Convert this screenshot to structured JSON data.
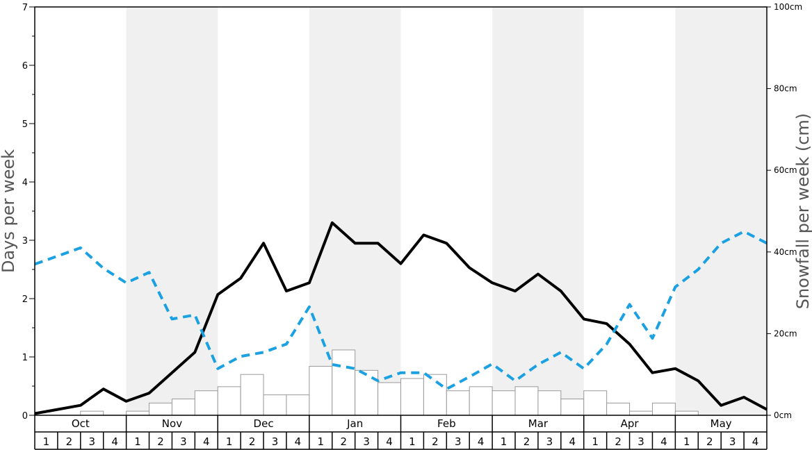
{
  "chart_data": {
    "type": "bar+line",
    "title": "",
    "months": [
      "Oct",
      "Nov",
      "Dec",
      "Jan",
      "Feb",
      "Mar",
      "Apr",
      "May"
    ],
    "week_labels": [
      "1",
      "2",
      "3",
      "4"
    ],
    "left_axis": {
      "label": "Days per week",
      "ylim": [
        0,
        7
      ],
      "ticks": [
        "0",
        "1",
        "2",
        "3",
        "4",
        "5",
        "6",
        "7"
      ]
    },
    "right_axis": {
      "label": "Snowfall per week (cm)",
      "ylim": [
        0,
        100
      ],
      "ticks": [
        "0cm",
        "20cm",
        "40cm",
        "60cm",
        "80cm",
        "100cm"
      ]
    },
    "series": [
      {
        "type": "bar",
        "axis": "right",
        "values": [
          0,
          0,
          1,
          0,
          1,
          3,
          4,
          6,
          7,
          10,
          5,
          5,
          12,
          16,
          11,
          8,
          9,
          10,
          6,
          7,
          6,
          7,
          6,
          4,
          6,
          3,
          1,
          3,
          1,
          0,
          0,
          0
        ]
      },
      {
        "type": "line",
        "axis": "left",
        "style": "solid",
        "color": "#000000",
        "values": [
          0.03,
          0.1,
          0.17,
          0.45,
          0.24,
          0.38,
          0.73,
          1.08,
          2.07,
          2.35,
          2.95,
          2.13,
          2.27,
          3.3,
          2.95,
          2.95,
          2.6,
          3.09,
          2.95,
          2.53,
          2.27,
          2.13,
          2.42,
          2.13,
          1.65,
          1.57,
          1.22,
          0.73,
          0.8,
          0.59,
          0.17,
          0.31,
          0.1
        ]
      },
      {
        "type": "line",
        "axis": "left",
        "style": "dashed",
        "color": "#1ba1e2",
        "values": [
          2.59,
          2.73,
          2.87,
          2.52,
          2.27,
          2.45,
          1.65,
          1.72,
          0.8,
          1.01,
          1.08,
          1.22,
          1.86,
          0.87,
          0.8,
          0.59,
          0.73,
          0.73,
          0.45,
          0.66,
          0.88,
          0.59,
          0.87,
          1.08,
          0.8,
          1.22,
          1.9,
          1.32,
          2.2,
          2.5,
          2.95,
          3.15,
          2.95
        ]
      }
    ],
    "bands": [
      "white",
      "gray",
      "white",
      "gray",
      "white",
      "gray",
      "white",
      "gray"
    ],
    "band_color": "#f0f0f0"
  }
}
